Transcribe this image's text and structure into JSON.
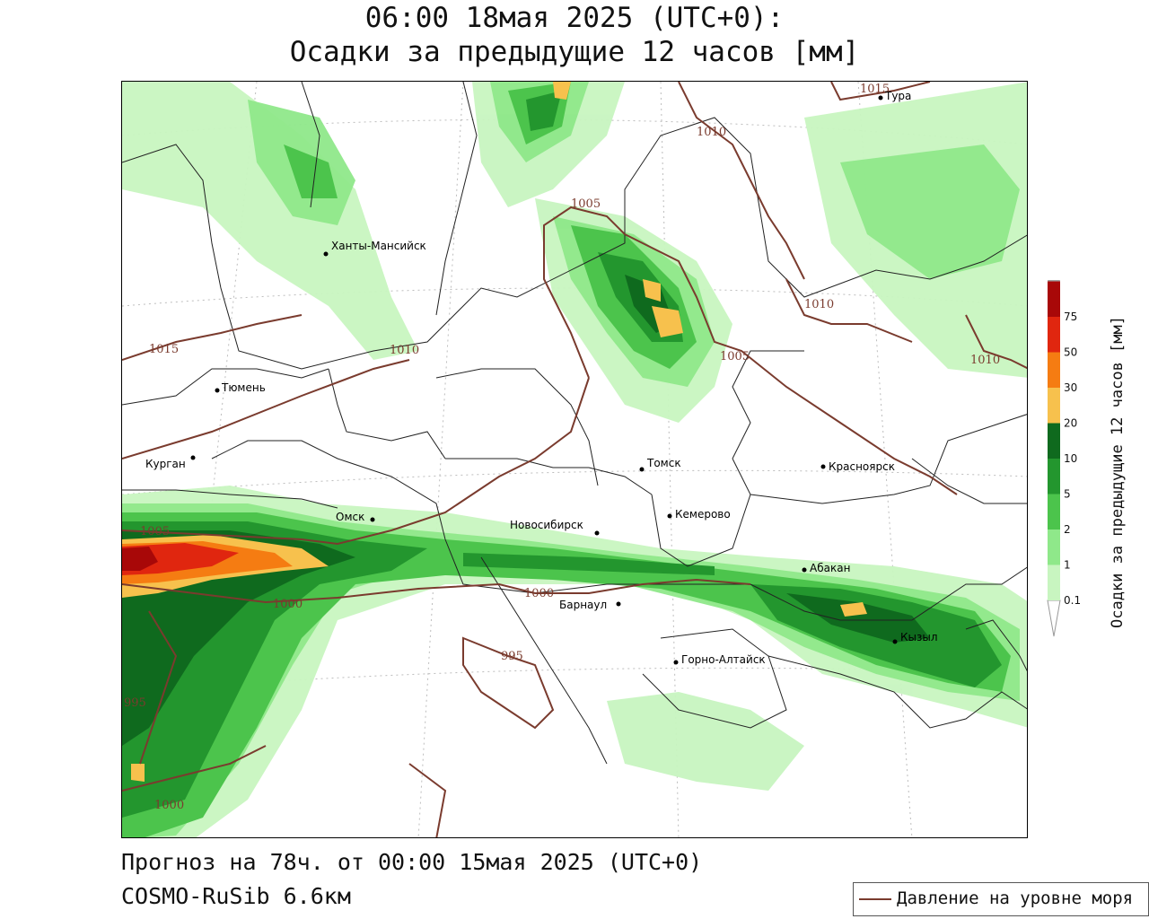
{
  "title_line1": "06:00 18мая 2025 (UTC+0):",
  "title_line2": "Осадки за предыдущие 12 часов [мм]",
  "footer_line1": "Прогноз на 78ч. от 00:00 15мая 2025 (UTC+0)",
  "footer_line2": "COSMO-RuSib 6.6км",
  "legend": {
    "isobar_label": "Давление на уровне моря",
    "isobar_color": "#7a3b2e"
  },
  "colorbar": {
    "title": "Осадки за предыдущие 12 часов [мм]",
    "levels": [
      "0.1",
      "1",
      "2",
      "5",
      "10",
      "20",
      "30",
      "50",
      "75"
    ],
    "colors": [
      "#c8f5c0",
      "#8fe88a",
      "#4cc44c",
      "#23962e",
      "#0f6a1e",
      "#f7c14d",
      "#f57c12",
      "#e0260f",
      "#a80808",
      "#a0a0a0"
    ]
  },
  "cities": [
    {
      "name": "Ханты-Мансийск"
    },
    {
      "name": "Тюмень"
    },
    {
      "name": "Курган"
    },
    {
      "name": "Омск"
    },
    {
      "name": "Новосибирск"
    },
    {
      "name": "Томск"
    },
    {
      "name": "Кемерово"
    },
    {
      "name": "Красноярск"
    },
    {
      "name": "Абакан"
    },
    {
      "name": "Кызыл"
    },
    {
      "name": "Барнаул"
    },
    {
      "name": "Горно-Алтайск"
    },
    {
      "name": "Тура"
    }
  ],
  "isobar_labels": [
    "1015",
    "1010",
    "1005",
    "1000",
    "995"
  ]
}
